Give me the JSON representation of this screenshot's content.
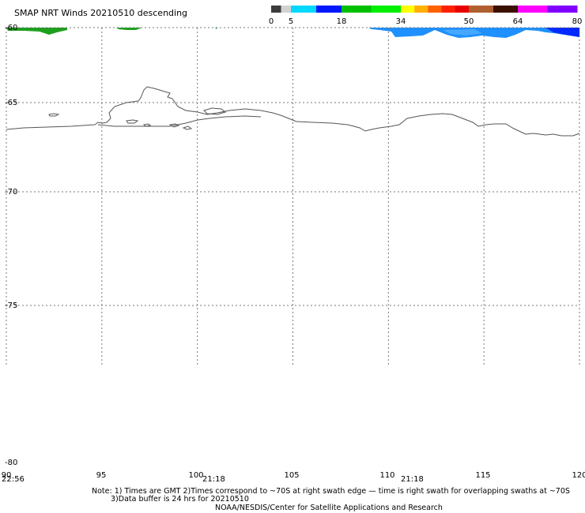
{
  "title": "SMAP NRT Winds  20210510 descending",
  "colorbar": {
    "labels": [
      "0",
      "5",
      "18",
      "34",
      "50",
      "64",
      "80"
    ],
    "segments": [
      {
        "from": 0,
        "to": 5,
        "colors": [
          "#3c3c3c",
          "#d2d2d2"
        ]
      },
      {
        "from": 5,
        "to": 18,
        "colors": [
          "#00d8ff",
          "#0018ff"
        ]
      },
      {
        "from": 18,
        "to": 34,
        "colors": [
          "#00c000",
          "#00f000"
        ]
      },
      {
        "from": 34,
        "to": 50,
        "colors": [
          "#ffff00",
          "#ffb000",
          "#ff6000",
          "#ff2000",
          "#e80000"
        ]
      },
      {
        "from": 50,
        "to": 64,
        "colors": [
          "#b06030",
          "#3a1000"
        ]
      },
      {
        "from": 64,
        "to": 80,
        "colors": [
          "#ff00ff",
          "#8000ff"
        ]
      }
    ]
  },
  "map": {
    "lon_range": [
      90,
      120
    ],
    "lat_range": [
      -80,
      -60
    ],
    "lon_ticks": [
      "95",
      "100",
      "105",
      "110",
      "115",
      "120"
    ],
    "lat_ticks": [
      "-60",
      "-65",
      "-70",
      "-75",
      "-80"
    ],
    "corner_label": "90",
    "swath_times": [
      "22:56",
      "21:18",
      "21:18"
    ]
  },
  "notes": {
    "line1": "Note: 1) Times are GMT 2)Times correspond to ~70S at right swath edge — time is right swath for overlapping swaths at ~70S",
    "line2": "3)Data buffer is 24 hrs for 20210510",
    "line3": "NOAA/NESDIS/Center for Satellite Applications and Research"
  },
  "colors": {
    "coastline": "#555555",
    "grid": "#555555",
    "wind_green": "#1ea01e",
    "wind_blue_light": "#1e90ff",
    "wind_blue_dark": "#0028ff"
  }
}
